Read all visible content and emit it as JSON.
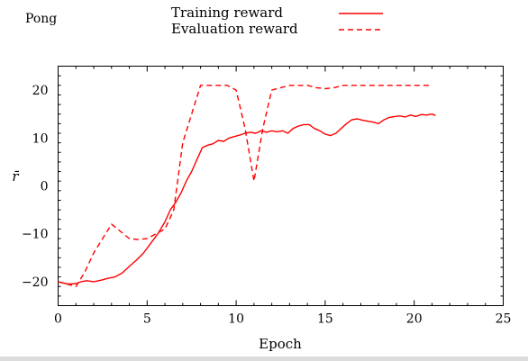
{
  "chart_data": {
    "type": "line",
    "title": "Pong",
    "xlabel": "Epoch",
    "ylabel": "r̄",
    "xlim": [
      0,
      25
    ],
    "ylim": [
      -25,
      25
    ],
    "xticks": [
      0,
      5,
      10,
      15,
      20,
      25
    ],
    "yticks": [
      -20,
      -10,
      0,
      10,
      20
    ],
    "xtick_labels": [
      "0",
      "5",
      "10",
      "15",
      "20",
      "25"
    ],
    "ytick_labels": [
      "−20",
      "−10",
      "0",
      "10",
      "20"
    ],
    "legend_position": "top-right (outside, above plot)",
    "grid": false,
    "series": [
      {
        "name": "Training reward",
        "style": "solid",
        "color": "#ff0000",
        "x": [
          0,
          0.3,
          0.6,
          1,
          1.3,
          1.6,
          2,
          2.4,
          2.8,
          3.2,
          3.6,
          4,
          4.4,
          4.8,
          5.2,
          5.6,
          6,
          6.3,
          6.6,
          6.9,
          7.2,
          7.5,
          7.8,
          8.1,
          8.4,
          8.7,
          9,
          9.3,
          9.6,
          9.9,
          10.2,
          10.5,
          10.8,
          11.1,
          11.4,
          11.7,
          12,
          12.3,
          12.6,
          12.9,
          13.2,
          13.5,
          13.8,
          14.1,
          14.4,
          14.7,
          15,
          15.3,
          15.6,
          15.9,
          16.2,
          16.5,
          16.8,
          17.1,
          17.4,
          17.7,
          18,
          18.3,
          18.6,
          18.9,
          19.2,
          19.5,
          19.8,
          20.1,
          20.4,
          20.7,
          21,
          21.2
        ],
        "y": [
          -20,
          -20.3,
          -20.5,
          -20.4,
          -20,
          -19.8,
          -20,
          -19.7,
          -19.3,
          -19,
          -18.2,
          -16.8,
          -15.5,
          -14,
          -12,
          -10,
          -7.5,
          -5,
          -3.5,
          -1.5,
          1,
          3,
          5.5,
          8,
          8.5,
          8.8,
          9.5,
          9.3,
          10,
          10.3,
          10.6,
          11,
          11.2,
          11,
          11.5,
          11.2,
          11.5,
          11.3,
          11.5,
          11,
          12,
          12.5,
          12.8,
          12.8,
          12,
          11.5,
          10.8,
          10.5,
          11,
          12,
          13,
          13.8,
          14,
          13.7,
          13.5,
          13.3,
          13,
          13.8,
          14.3,
          14.5,
          14.6,
          14.4,
          14.8,
          14.5,
          14.9,
          14.8,
          15,
          14.7
        ]
      },
      {
        "name": "Evaluation reward",
        "style": "dashed",
        "color": "#ff0000",
        "x": [
          0,
          0.5,
          1,
          1.5,
          2,
          2.5,
          3,
          3.5,
          4,
          4.5,
          5,
          5.5,
          6,
          6.5,
          7,
          7.5,
          8,
          8.5,
          9,
          9.5,
          10,
          10.5,
          11,
          11.5,
          12,
          12.5,
          13,
          13.5,
          14,
          14.5,
          15,
          15.5,
          16,
          16.5,
          17,
          18,
          19,
          20,
          21
        ],
        "y": [
          -20,
          -20.5,
          -21,
          -18,
          -14,
          -11,
          -8,
          -9.5,
          -11,
          -11.2,
          -11,
          -10,
          -9,
          -5,
          9,
          15,
          21,
          21,
          21,
          21,
          20,
          12,
          1,
          12,
          20,
          20.5,
          21,
          21,
          21,
          20.5,
          20.3,
          20.5,
          21,
          21,
          21,
          21,
          21,
          21,
          21
        ]
      }
    ]
  }
}
